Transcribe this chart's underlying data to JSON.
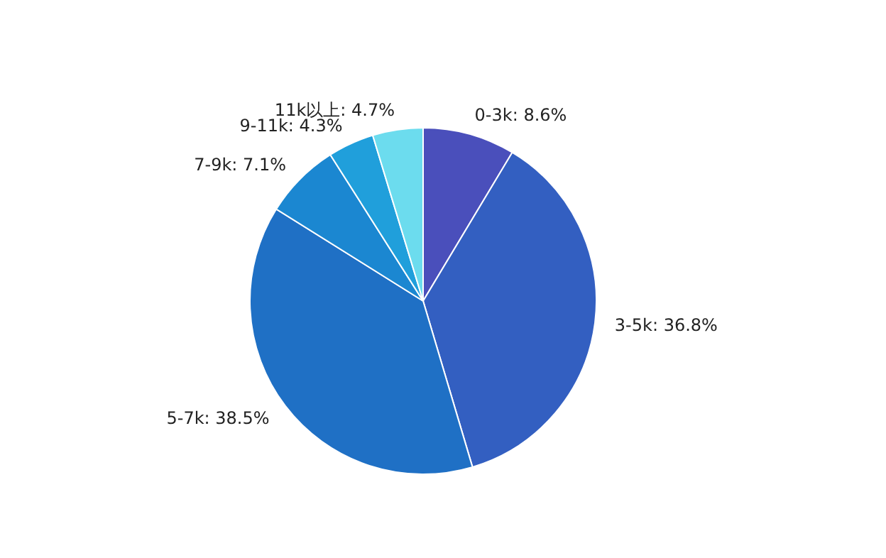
{
  "chart_data": {
    "type": "pie",
    "categories": [
      "0-3k",
      "3-5k",
      "5-7k",
      "7-9k",
      "9-11k",
      "11k以上"
    ],
    "values": [
      8.6,
      36.8,
      38.5,
      7.1,
      4.3,
      4.7
    ],
    "colors": [
      "#4a4fbb",
      "#335fc1",
      "#1f70c5",
      "#1b87d1",
      "#209fdb",
      "#6cdcee"
    ],
    "value_labels": [
      "8.6%",
      "36.8%",
      "38.5%",
      "7.1%",
      "4.3%",
      "4.7%"
    ]
  }
}
